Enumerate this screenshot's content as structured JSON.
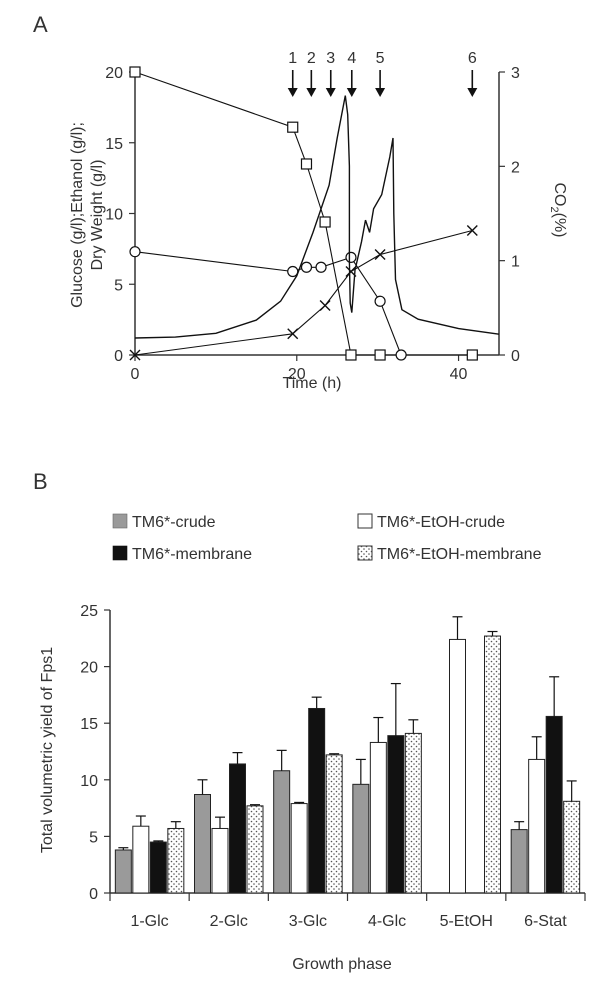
{
  "figure": {
    "panels": [
      "A",
      "B"
    ]
  },
  "chart_data": [
    {
      "type": "line",
      "panel": "A",
      "xlabel": "Time (h)",
      "ylabel_left_lines": [
        "Glucose (g/l);Ethanol (g/l);",
        "Dry Weight (g/l)"
      ],
      "ylabel_right_main": "CO",
      "ylabel_right_sub": "2",
      "ylabel_right_tail": "(%)",
      "xlim": [
        0,
        45
      ],
      "ylim_left": [
        0,
        20
      ],
      "ylim_right": [
        0,
        3
      ],
      "x_ticks": [
        0,
        20,
        40
      ],
      "y_left_ticks": [
        0,
        5,
        10,
        15,
        20
      ],
      "y_right_ticks": [
        0,
        1,
        2,
        3
      ],
      "grid": false,
      "sampling_points": [
        {
          "label": "1",
          "x": 19.5
        },
        {
          "label": "2",
          "x": 21.8
        },
        {
          "label": "3",
          "x": 24.2
        },
        {
          "label": "4",
          "x": 26.8
        },
        {
          "label": "5",
          "x": 30.3
        },
        {
          "label": "6",
          "x": 41.7
        }
      ],
      "series": [
        {
          "marker": "square",
          "axis": "left",
          "points": [
            [
              0,
              20.0
            ],
            [
              19.5,
              16.1
            ],
            [
              21.2,
              13.5
            ],
            [
              23.5,
              9.4
            ],
            [
              26.7,
              0.0
            ],
            [
              30.3,
              0.0
            ],
            [
              41.7,
              0.0
            ]
          ]
        },
        {
          "marker": "circle",
          "axis": "left",
          "points": [
            [
              0,
              7.3
            ],
            [
              19.5,
              5.9
            ],
            [
              21.2,
              6.2
            ],
            [
              23.0,
              6.2
            ],
            [
              26.7,
              6.9
            ],
            [
              30.3,
              3.8
            ],
            [
              32.9,
              0.0
            ]
          ]
        },
        {
          "marker": "cross",
          "axis": "left",
          "points": [
            [
              0,
              0.0
            ],
            [
              19.5,
              1.5
            ],
            [
              23.5,
              3.5
            ],
            [
              26.7,
              5.9
            ],
            [
              30.3,
              7.1
            ],
            [
              41.7,
              8.8
            ]
          ]
        },
        {
          "marker": "none",
          "axis": "right",
          "points": [
            [
              0,
              0.18
            ],
            [
              5,
              0.19
            ],
            [
              10,
              0.23
            ],
            [
              15,
              0.37
            ],
            [
              18,
              0.57
            ],
            [
              20,
              0.84
            ],
            [
              22,
              1.3
            ],
            [
              24,
              1.8
            ],
            [
              25,
              2.3
            ],
            [
              26,
              2.75
            ],
            [
              26.3,
              2.55
            ],
            [
              26.5,
              2.0
            ],
            [
              26.5,
              1.0
            ],
            [
              26.6,
              0.55
            ],
            [
              26.8,
              0.45
            ],
            [
              27.2,
              0.9
            ],
            [
              28.0,
              1.2
            ],
            [
              28.5,
              1.43
            ],
            [
              29,
              1.3
            ],
            [
              29.5,
              1.55
            ],
            [
              30.5,
              1.7
            ],
            [
              31.5,
              2.1
            ],
            [
              31.9,
              2.3
            ],
            [
              32.0,
              1.5
            ],
            [
              32.2,
              0.8
            ],
            [
              33,
              0.48
            ],
            [
              35,
              0.38
            ],
            [
              40,
              0.28
            ],
            [
              45,
              0.22
            ]
          ]
        }
      ]
    },
    {
      "type": "bar",
      "panel": "B",
      "ylabel": "Total volumetric yield of Fps1",
      "xlabel": "Growth phase",
      "ylim": [
        0,
        25
      ],
      "y_ticks": [
        0,
        5,
        10,
        15,
        20,
        25
      ],
      "categories": [
        "1-Glc",
        "2-Glc",
        "3-Glc",
        "4-Glc",
        "5-EtOH",
        "6-Stat"
      ],
      "legend_placement": "top",
      "series": [
        {
          "name": "TM6*-crude",
          "color": "#9a9a9a",
          "pattern": "solid",
          "values": [
            3.8,
            8.7,
            10.8,
            9.6,
            null,
            5.6
          ],
          "errors": [
            0.2,
            1.3,
            1.8,
            2.2,
            null,
            0.7
          ]
        },
        {
          "name": "TM6*-EtOH-crude",
          "color": "#ffffff",
          "pattern": "solid",
          "values": [
            5.9,
            5.7,
            7.9,
            13.3,
            22.4,
            11.8
          ],
          "errors": [
            0.9,
            1.0,
            0.1,
            2.2,
            2.0,
            2.0
          ]
        },
        {
          "name": "TM6*-membrane",
          "color": "#111111",
          "pattern": "solid",
          "values": [
            4.5,
            11.4,
            16.3,
            13.9,
            null,
            15.6
          ],
          "errors": [
            0.1,
            1.0,
            1.0,
            4.6,
            null,
            3.5
          ]
        },
        {
          "name": "TM6*-EtOH-membrane",
          "color": "#ffffff",
          "pattern": "dots",
          "values": [
            5.7,
            7.7,
            12.2,
            14.1,
            22.7,
            8.1
          ],
          "errors": [
            0.6,
            0.1,
            0.1,
            1.2,
            0.4,
            1.8
          ]
        }
      ]
    }
  ]
}
